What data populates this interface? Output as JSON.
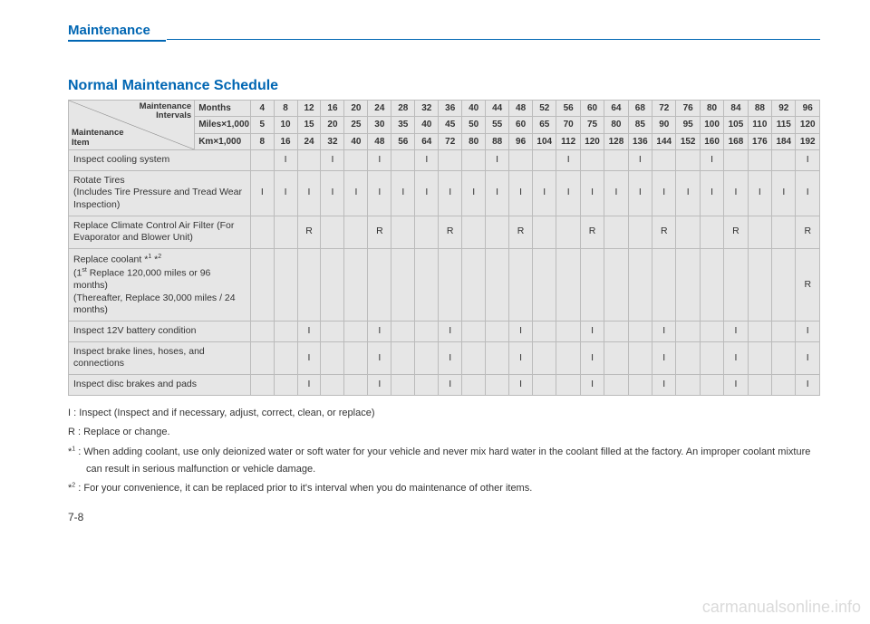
{
  "section": "Maintenance",
  "title": "Normal Maintenance Schedule",
  "headerCorner": {
    "top": "Maintenance<br>Intervals",
    "bottom": "Maintenance<br>Item"
  },
  "measures": [
    {
      "label": "Months",
      "vals": [
        "4",
        "8",
        "12",
        "16",
        "20",
        "24",
        "28",
        "32",
        "36",
        "40",
        "44",
        "48",
        "52",
        "56",
        "60",
        "64",
        "68",
        "72",
        "76",
        "80",
        "84",
        "88",
        "92",
        "96"
      ]
    },
    {
      "label": "Miles×1,000",
      "vals": [
        "5",
        "10",
        "15",
        "20",
        "25",
        "30",
        "35",
        "40",
        "45",
        "50",
        "55",
        "60",
        "65",
        "70",
        "75",
        "80",
        "85",
        "90",
        "95",
        "100",
        "105",
        "110",
        "115",
        "120"
      ]
    },
    {
      "label": "Km×1,000",
      "vals": [
        "8",
        "16",
        "24",
        "32",
        "40",
        "48",
        "56",
        "64",
        "72",
        "80",
        "88",
        "96",
        "104",
        "112",
        "120",
        "128",
        "136",
        "144",
        "152",
        "160",
        "168",
        "176",
        "184",
        "192"
      ]
    }
  ],
  "items": [
    {
      "label": "Inspect cooling system",
      "cells": [
        "",
        "I",
        "",
        "I",
        "",
        "I",
        "",
        "I",
        "",
        "",
        "I",
        "",
        "",
        "I",
        "",
        "",
        "I",
        "",
        "",
        "I",
        "",
        "",
        "",
        "I"
      ]
    },
    {
      "label": "Rotate Tires<br>(Includes Tire Pressure and Tread Wear Inspection)",
      "cells": [
        "I",
        "I",
        "I",
        "I",
        "I",
        "I",
        "I",
        "I",
        "I",
        "I",
        "I",
        "I",
        "I",
        "I",
        "I",
        "I",
        "I",
        "I",
        "I",
        "I",
        "I",
        "I",
        "I",
        "I"
      ]
    },
    {
      "label": "Replace Climate Control Air Filter (For Evaporator and Blower Unit)",
      "cells": [
        "",
        "",
        "R",
        "",
        "",
        "R",
        "",
        "",
        "R",
        "",
        "",
        "R",
        "",
        "",
        "R",
        "",
        "",
        "R",
        "",
        "",
        "R",
        "",
        "",
        "R"
      ]
    },
    {
      "label": "Replace coolant *<sup>1</sup> *<sup>2</sup><br>(1<sup>st</sup> Replace 120,000 miles or 96 months)<br>(Thereafter, Replace 30,000 miles / 24 months)",
      "cells": [
        "",
        "",
        "",
        "",
        "",
        "",
        "",
        "",
        "",
        "",
        "",
        "",
        "",
        "",
        "",
        "",
        "",
        "",
        "",
        "",
        "",
        "",
        "",
        "R"
      ]
    },
    {
      "label": "Inspect 12V battery condition",
      "cells": [
        "",
        "",
        "I",
        "",
        "",
        "I",
        "",
        "",
        "I",
        "",
        "",
        "I",
        "",
        "",
        "I",
        "",
        "",
        "I",
        "",
        "",
        "I",
        "",
        "",
        "I"
      ]
    },
    {
      "label": "Inspect brake lines, hoses, and connections",
      "cells": [
        "",
        "",
        "I",
        "",
        "",
        "I",
        "",
        "",
        "I",
        "",
        "",
        "I",
        "",
        "",
        "I",
        "",
        "",
        "I",
        "",
        "",
        "I",
        "",
        "",
        "I"
      ]
    },
    {
      "label": "Inspect disc brakes and pads",
      "cells": [
        "",
        "",
        "I",
        "",
        "",
        "I",
        "",
        "",
        "I",
        "",
        "",
        "I",
        "",
        "",
        "I",
        "",
        "",
        "I",
        "",
        "",
        "I",
        "",
        "",
        "I"
      ]
    }
  ],
  "legend": {
    "inspect": "I   : Inspect (Inspect and if necessary, adjust, correct, clean, or replace)",
    "replace": "R : Replace or change.",
    "note1": "*<sup>1</sup> : When adding coolant, use only deionized water or soft water for your vehicle and never mix hard water in the coolant filled at the factory. An improper coolant mixture can result in serious malfunction or vehicle damage.",
    "note2": "*<sup>2</sup> : For your convenience, it can be replaced prior to it's interval when you do maintenance of other items."
  },
  "pageNum": "7-8",
  "watermark": "carmanualsonline.info",
  "colors": {
    "accent": "#0066b3",
    "headerBg": "#e6e6e6",
    "border": "#bbbbbb"
  }
}
